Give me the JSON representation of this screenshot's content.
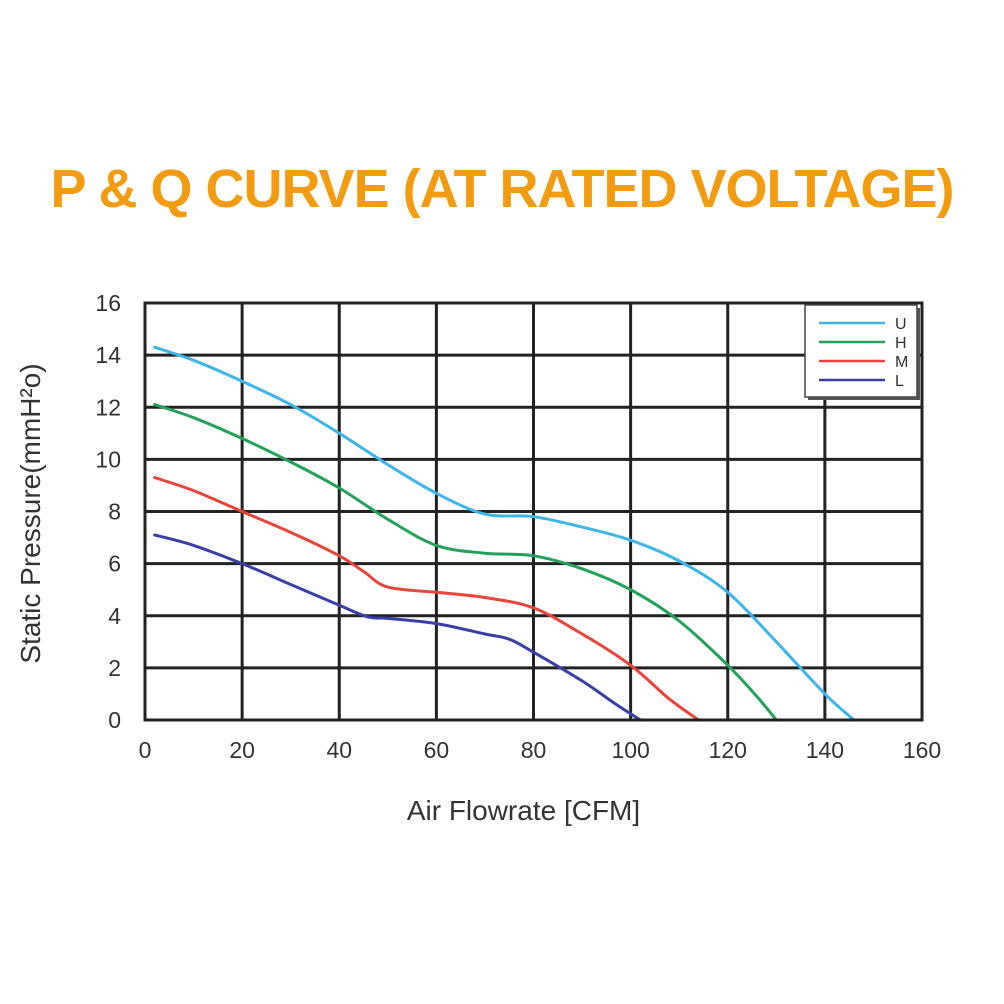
{
  "chart_data": {
    "type": "line",
    "title": "P & Q CURVE (AT RATED VOLTAGE)",
    "title_color": "#f39c12",
    "xlabel": "Air  Flowrate   [CFM]",
    "ylabel": "Static Pressure(mmH²o)",
    "xlim": [
      0,
      160
    ],
    "ylim": [
      0,
      16
    ],
    "x_ticks": [
      "0",
      "20",
      "40",
      "60",
      "80",
      "100",
      "120",
      "140",
      "160"
    ],
    "y_ticks": [
      "0",
      "2",
      "4",
      "6",
      "8",
      "10",
      "12",
      "14",
      "16"
    ],
    "grid": true,
    "legend_position": "top-right",
    "series": [
      {
        "name": "U",
        "color": "#3db5e6",
        "points": [
          [
            2,
            14.3
          ],
          [
            10,
            13.8
          ],
          [
            20,
            13.0
          ],
          [
            30,
            12.1
          ],
          [
            40,
            11.0
          ],
          [
            50,
            9.8
          ],
          [
            60,
            8.7
          ],
          [
            70,
            7.9
          ],
          [
            80,
            7.8
          ],
          [
            90,
            7.4
          ],
          [
            100,
            6.9
          ],
          [
            110,
            6.1
          ],
          [
            120,
            4.9
          ],
          [
            130,
            3.0
          ],
          [
            140,
            1.0
          ],
          [
            146,
            0
          ]
        ]
      },
      {
        "name": "H",
        "color": "#22a15a",
        "points": [
          [
            2,
            12.1
          ],
          [
            10,
            11.6
          ],
          [
            20,
            10.8
          ],
          [
            30,
            9.9
          ],
          [
            40,
            8.9
          ],
          [
            50,
            7.7
          ],
          [
            60,
            6.7
          ],
          [
            70,
            6.4
          ],
          [
            80,
            6.3
          ],
          [
            90,
            5.8
          ],
          [
            100,
            5.0
          ],
          [
            110,
            3.8
          ],
          [
            120,
            2.1
          ],
          [
            126,
            0.9
          ],
          [
            130,
            0
          ]
        ]
      },
      {
        "name": "M",
        "color": "#e8443a",
        "points": [
          [
            2,
            9.3
          ],
          [
            10,
            8.8
          ],
          [
            20,
            8.0
          ],
          [
            30,
            7.2
          ],
          [
            40,
            6.3
          ],
          [
            45,
            5.7
          ],
          [
            50,
            5.1
          ],
          [
            60,
            4.9
          ],
          [
            70,
            4.7
          ],
          [
            80,
            4.3
          ],
          [
            90,
            3.3
          ],
          [
            100,
            2.1
          ],
          [
            108,
            0.8
          ],
          [
            114,
            0
          ]
        ]
      },
      {
        "name": "L",
        "color": "#3a3fa8",
        "points": [
          [
            2,
            7.1
          ],
          [
            10,
            6.7
          ],
          [
            20,
            6.0
          ],
          [
            30,
            5.2
          ],
          [
            40,
            4.4
          ],
          [
            46,
            3.95
          ],
          [
            50,
            3.9
          ],
          [
            60,
            3.7
          ],
          [
            70,
            3.3
          ],
          [
            75,
            3.1
          ],
          [
            80,
            2.6
          ],
          [
            90,
            1.5
          ],
          [
            97,
            0.6
          ],
          [
            102,
            0
          ]
        ]
      }
    ]
  }
}
